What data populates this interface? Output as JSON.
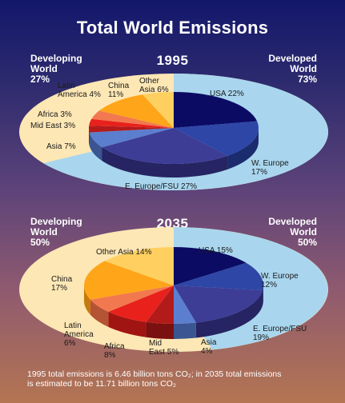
{
  "title": "Total World Emissions",
  "chart_data": [
    {
      "type": "pie",
      "title": "1995",
      "left_group": {
        "label1": "Developing",
        "label2": "World",
        "value": "27%"
      },
      "right_group": {
        "label1": "Developed",
        "label2": "World",
        "value": "73%"
      },
      "slices": [
        {
          "label": "USA",
          "value": 22,
          "text": "USA 22%",
          "color": "#0b0b63",
          "side": "#06063a"
        },
        {
          "label": "W. Europe",
          "value": 17,
          "text_lines": [
            "W. Europe",
            "17%"
          ],
          "color": "#2e46a6",
          "side": "#1b2c6e"
        },
        {
          "label": "E. Europe/FSU",
          "value": 27,
          "text": "E. Europe/FSU 27%",
          "color": "#3d3d96",
          "side": "#262462"
        },
        {
          "label": "Asia",
          "value": 7,
          "text": "Asia 7%",
          "color": "#5b7ecf",
          "side": "#3a5591"
        },
        {
          "label": "Mid East",
          "value": 3,
          "text": "Mid East 3%",
          "color": "#b31b1b",
          "side": "#7a1010"
        },
        {
          "label": "Africa",
          "value": 3,
          "text": "Africa 3%",
          "color": "#e8211d",
          "side": "#a01512"
        },
        {
          "label": "Latin America",
          "value": 4,
          "text_lines": [
            "Latin",
            "America 4%"
          ],
          "color": "#f2794f",
          "side": "#b45434"
        },
        {
          "label": "China",
          "value": 11,
          "text_lines": [
            "China",
            "11%"
          ],
          "color": "#ffa51a",
          "side": "#c57a0c"
        },
        {
          "label": "Other Asia",
          "value": 6,
          "text_lines": [
            "Other",
            "Asia 6%"
          ],
          "color": "#ffd060",
          "side": "#c99d3a"
        }
      ]
    },
    {
      "type": "pie",
      "title": "2035",
      "left_group": {
        "label1": "Developing",
        "label2": "World",
        "value": "50%"
      },
      "right_group": {
        "label1": "Developed",
        "label2": "World",
        "value": "50%"
      },
      "slices": [
        {
          "label": "USA",
          "value": 15,
          "text": "USA 15%",
          "color": "#0b0b63",
          "side": "#06063a"
        },
        {
          "label": "W. Europe",
          "value": 12,
          "text_lines": [
            "W. Europe",
            "12%"
          ],
          "color": "#2e46a6",
          "side": "#1b2c6e"
        },
        {
          "label": "E. Europe/FSU",
          "value": 19,
          "text_lines": [
            "E. Europe/FSU",
            "19%"
          ],
          "color": "#3d3d96",
          "side": "#262462"
        },
        {
          "label": "Asia",
          "value": 4,
          "text_lines": [
            "Asia",
            "4%"
          ],
          "color": "#5b7ecf",
          "side": "#3a5591"
        },
        {
          "label": "Mid East",
          "value": 5,
          "text_lines": [
            "Mid",
            "East 5%"
          ],
          "color": "#b31b1b",
          "side": "#7a1010"
        },
        {
          "label": "Africa",
          "value": 8,
          "text_lines": [
            "Africa",
            "8%"
          ],
          "color": "#e8211d",
          "side": "#a01512"
        },
        {
          "label": "Latin America",
          "value": 6,
          "text_lines": [
            "Latin",
            "America",
            "6%"
          ],
          "color": "#f2794f",
          "side": "#b45434"
        },
        {
          "label": "China",
          "value": 17,
          "text_lines": [
            "China",
            "17%"
          ],
          "color": "#ffa51a",
          "side": "#c57a0c"
        },
        {
          "label": "Other Asia",
          "value": 14,
          "text": "Other Asia 14%",
          "color": "#ffd060",
          "side": "#c99d3a"
        }
      ]
    }
  ],
  "footnote": {
    "line1": "1995 total emissions is 6.46 billion tons CO₂; in 2035 total emissions",
    "line2": "is estimated to be 11.71 billion tons CO₂"
  },
  "colors": {
    "developing_band": "#fde7b5",
    "developed_band": "#a9d6ee"
  }
}
